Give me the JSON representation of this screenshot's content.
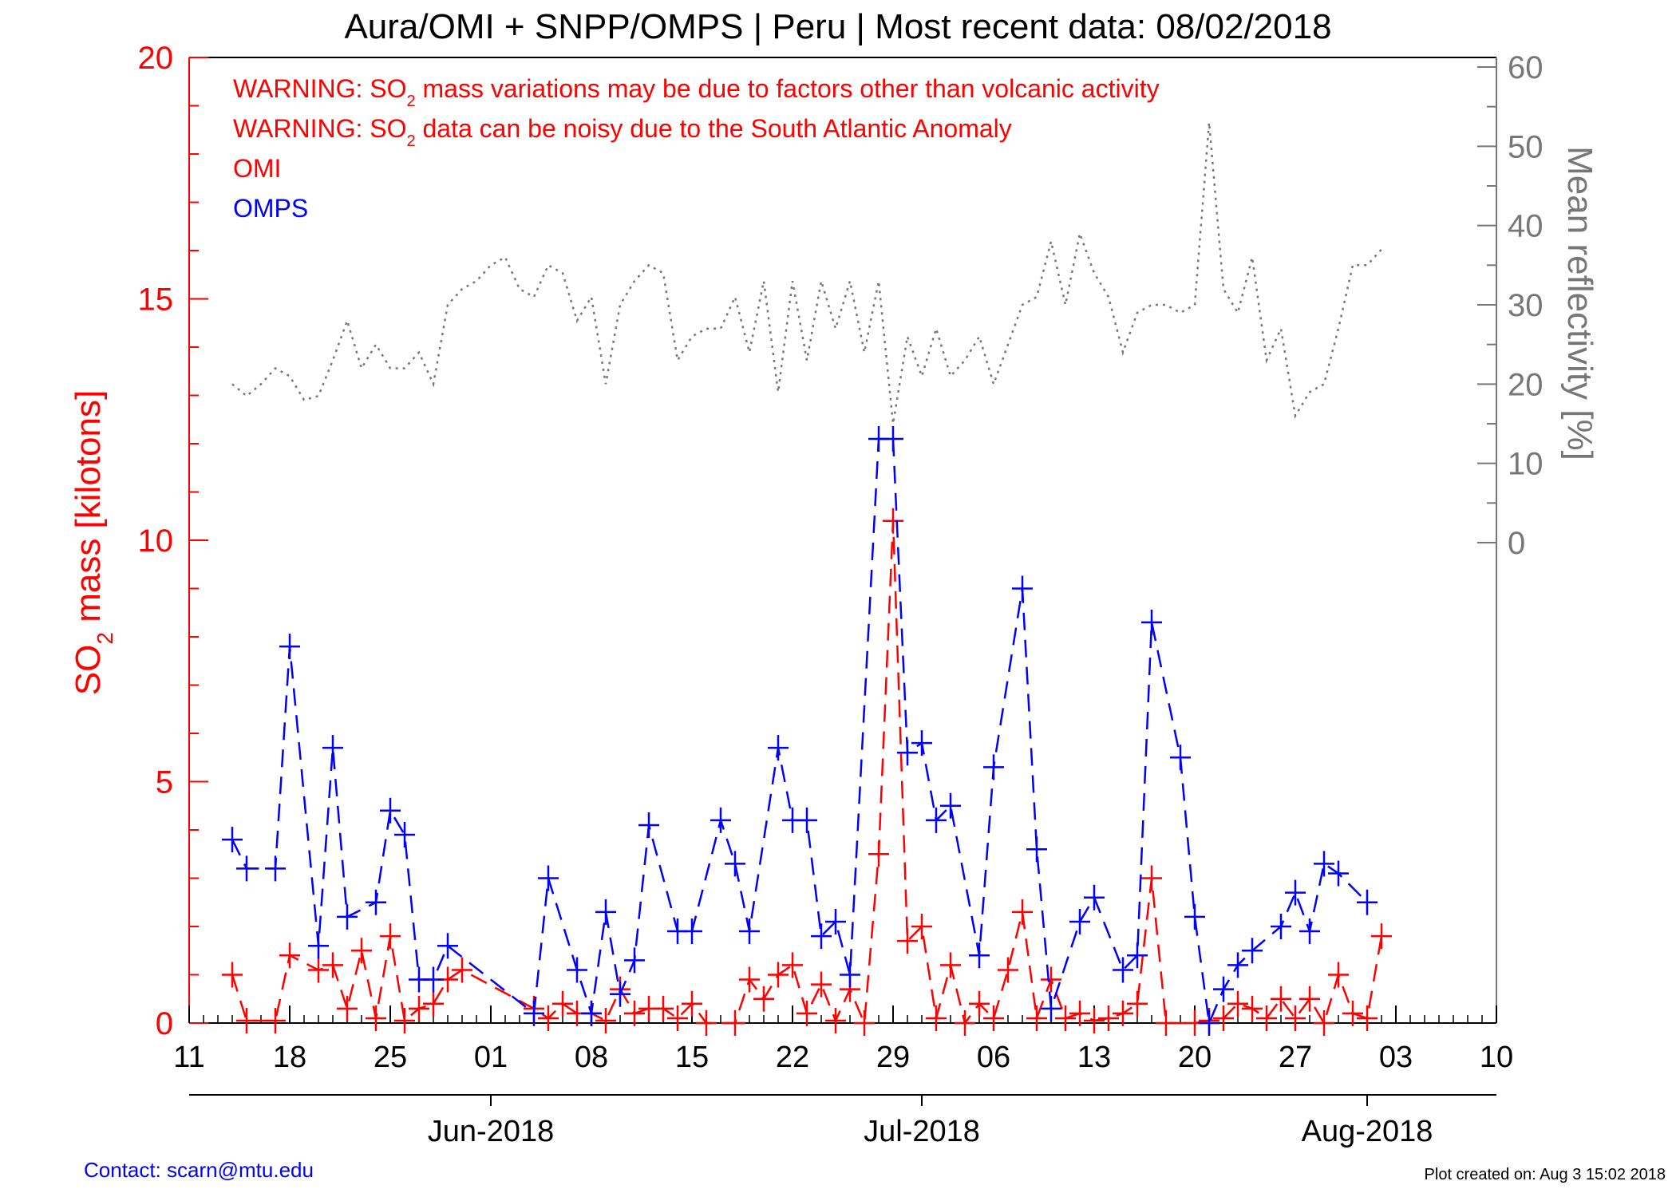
{
  "title": "Aura/OMI + SNPP/OMPS | Peru | Most recent data: 08/02/2018",
  "warnings": [
    {
      "pre": "WARNING: SO",
      "sub": "2",
      "post": " mass variations may be due to factors other than volcanic activity"
    },
    {
      "pre": "WARNING: SO",
      "sub": "2",
      "post": " data can be noisy due to the South Atlantic Anomaly"
    }
  ],
  "footer": {
    "contact": "Contact: scarn@mtu.edu",
    "created": "Plot created on: Aug  3 15:02 2018"
  },
  "chart_data": {
    "type": "line",
    "x_axis": {
      "range_dates": [
        "2018-05-11",
        "2018-08-10"
      ],
      "tick_labels": [
        "11",
        "18",
        "25",
        "01",
        "08",
        "15",
        "22",
        "29",
        "06",
        "13",
        "20",
        "27",
        "03",
        "10"
      ],
      "tick_dates": [
        "2018-05-11",
        "2018-05-18",
        "2018-05-25",
        "2018-06-01",
        "2018-06-08",
        "2018-06-15",
        "2018-06-22",
        "2018-06-29",
        "2018-07-06",
        "2018-07-13",
        "2018-07-20",
        "2018-07-27",
        "2018-08-03",
        "2018-08-10"
      ],
      "month_labels": [
        {
          "label": "Jun-2018",
          "date": "2018-06-01"
        },
        {
          "label": "Jul-2018",
          "date": "2018-07-01"
        },
        {
          "label": "Aug-2018",
          "date": "2018-08-01"
        }
      ]
    },
    "y_left": {
      "label_pre": "SO",
      "label_sub": "2",
      "label_post": " mass [kilotons]",
      "range": [
        0,
        20
      ],
      "ticks": [
        0,
        5,
        10,
        15,
        20
      ],
      "color": "#ff0000"
    },
    "y_right": {
      "label": "Mean reflectivity [%]",
      "range": [
        0,
        60
      ],
      "ticks": [
        0,
        10,
        20,
        30,
        40,
        50,
        60
      ],
      "color": "#777777"
    },
    "legend": [
      "OMI",
      "OMPS"
    ],
    "series": [
      {
        "name": "OMI",
        "axis": "left",
        "color": "#ff0000",
        "style": "dashed",
        "marker": "plus",
        "x": [
          "2018-05-14",
          "2018-05-15",
          "2018-05-17",
          "2018-05-18",
          "2018-05-20",
          "2018-05-21",
          "2018-05-22",
          "2018-05-23",
          "2018-05-24",
          "2018-05-25",
          "2018-05-26",
          "2018-05-27",
          "2018-05-28",
          "2018-05-29",
          "2018-05-30",
          "2018-06-04",
          "2018-06-05",
          "2018-06-06",
          "2018-06-07",
          "2018-06-08",
          "2018-06-09",
          "2018-06-10",
          "2018-06-11",
          "2018-06-12",
          "2018-06-13",
          "2018-06-14",
          "2018-06-15",
          "2018-06-16",
          "2018-06-18",
          "2018-06-19",
          "2018-06-20",
          "2018-06-21",
          "2018-06-22",
          "2018-06-23",
          "2018-06-24",
          "2018-06-25",
          "2018-06-26",
          "2018-06-27",
          "2018-06-28",
          "2018-06-29",
          "2018-06-30",
          "2018-07-01",
          "2018-07-02",
          "2018-07-03",
          "2018-07-04",
          "2018-07-05",
          "2018-07-06",
          "2018-07-07",
          "2018-07-08",
          "2018-07-09",
          "2018-07-10",
          "2018-07-11",
          "2018-07-12",
          "2018-07-13",
          "2018-07-14",
          "2018-07-15",
          "2018-07-16",
          "2018-07-17",
          "2018-07-18",
          "2018-07-20",
          "2018-07-21",
          "2018-07-22",
          "2018-07-23",
          "2018-07-24",
          "2018-07-25",
          "2018-07-26",
          "2018-07-27",
          "2018-07-28",
          "2018-07-29",
          "2018-07-30",
          "2018-07-31",
          "2018-08-01",
          "2018-08-02"
        ],
        "values": [
          1.0,
          0.05,
          0.05,
          1.4,
          1.1,
          1.2,
          0.3,
          1.5,
          0.1,
          1.8,
          0.05,
          0.3,
          0.4,
          0.9,
          1.1,
          0.3,
          0.1,
          0.4,
          0.2,
          0.2,
          0.05,
          0.7,
          0.2,
          0.3,
          0.3,
          0.1,
          0.4,
          0.0,
          0.0,
          0.9,
          0.5,
          1.0,
          1.2,
          0.2,
          0.8,
          0.05,
          0.7,
          0.0,
          3.5,
          10.4,
          1.7,
          2.0,
          0.1,
          1.2,
          0.0,
          0.4,
          0.1,
          1.1,
          2.3,
          0.1,
          0.9,
          0.1,
          0.2,
          0.05,
          0.1,
          0.2,
          0.4,
          3.0,
          0.0,
          0.0,
          0.05,
          0.1,
          0.4,
          0.3,
          0.1,
          0.5,
          0.1,
          0.5,
          0.0,
          1.0,
          0.2,
          0.1,
          1.8
        ]
      },
      {
        "name": "OMPS",
        "axis": "left",
        "color": "#0000ff",
        "style": "dashed",
        "marker": "plus",
        "x": [
          "2018-05-14",
          "2018-05-15",
          "2018-05-17",
          "2018-05-18",
          "2018-05-20",
          "2018-05-21",
          "2018-05-22",
          "2018-05-24",
          "2018-05-25",
          "2018-05-26",
          "2018-05-27",
          "2018-05-28",
          "2018-05-29",
          "2018-06-04",
          "2018-06-05",
          "2018-06-07",
          "2018-06-08",
          "2018-06-09",
          "2018-06-10",
          "2018-06-11",
          "2018-06-12",
          "2018-06-14",
          "2018-06-15",
          "2018-06-17",
          "2018-06-18",
          "2018-06-19",
          "2018-06-21",
          "2018-06-22",
          "2018-06-23",
          "2018-06-24",
          "2018-06-25",
          "2018-06-26",
          "2018-06-28",
          "2018-06-29",
          "2018-06-30",
          "2018-07-01",
          "2018-07-02",
          "2018-07-03",
          "2018-07-05",
          "2018-07-06",
          "2018-07-08",
          "2018-07-09",
          "2018-07-10",
          "2018-07-12",
          "2018-07-13",
          "2018-07-15",
          "2018-07-16",
          "2018-07-17",
          "2018-07-19",
          "2018-07-20",
          "2018-07-21",
          "2018-07-22",
          "2018-07-23",
          "2018-07-24",
          "2018-07-26",
          "2018-07-27",
          "2018-07-28",
          "2018-07-29",
          "2018-07-30",
          "2018-08-01"
        ],
        "values": [
          3.8,
          3.2,
          3.2,
          7.8,
          1.6,
          5.7,
          2.2,
          2.5,
          4.4,
          3.9,
          0.9,
          0.9,
          1.6,
          0.2,
          3.0,
          1.1,
          0.2,
          2.3,
          0.6,
          1.3,
          4.1,
          1.9,
          1.9,
          4.2,
          3.3,
          1.9,
          5.7,
          4.2,
          4.2,
          1.8,
          2.1,
          1.0,
          12.1,
          12.1,
          5.6,
          5.8,
          4.2,
          4.5,
          1.4,
          5.3,
          9.0,
          3.6,
          0.3,
          2.1,
          2.6,
          1.1,
          1.4,
          8.3,
          5.5,
          2.2,
          0.0,
          0.7,
          1.2,
          1.5,
          2.0,
          2.7,
          1.9,
          3.3,
          3.1,
          2.5
        ]
      },
      {
        "name": "Mean reflectivity",
        "axis": "right",
        "color": "#777777",
        "style": "dotted",
        "marker": "none",
        "x": [
          "2018-05-14",
          "2018-05-15",
          "2018-05-16",
          "2018-05-17",
          "2018-05-18",
          "2018-05-19",
          "2018-05-20",
          "2018-05-21",
          "2018-05-22",
          "2018-05-23",
          "2018-05-24",
          "2018-05-25",
          "2018-05-26",
          "2018-05-27",
          "2018-05-28",
          "2018-05-29",
          "2018-05-30",
          "2018-05-31",
          "2018-06-01",
          "2018-06-02",
          "2018-06-03",
          "2018-06-04",
          "2018-06-05",
          "2018-06-06",
          "2018-06-07",
          "2018-06-08",
          "2018-06-09",
          "2018-06-10",
          "2018-06-11",
          "2018-06-12",
          "2018-06-13",
          "2018-06-14",
          "2018-06-15",
          "2018-06-16",
          "2018-06-17",
          "2018-06-18",
          "2018-06-19",
          "2018-06-20",
          "2018-06-21",
          "2018-06-22",
          "2018-06-23",
          "2018-06-24",
          "2018-06-25",
          "2018-06-26",
          "2018-06-27",
          "2018-06-28",
          "2018-06-29",
          "2018-06-30",
          "2018-07-01",
          "2018-07-02",
          "2018-07-03",
          "2018-07-04",
          "2018-07-05",
          "2018-07-06",
          "2018-07-07",
          "2018-07-08",
          "2018-07-09",
          "2018-07-10",
          "2018-07-11",
          "2018-07-12",
          "2018-07-13",
          "2018-07-14",
          "2018-07-15",
          "2018-07-16",
          "2018-07-17",
          "2018-07-18",
          "2018-07-19",
          "2018-07-20",
          "2018-07-21",
          "2018-07-22",
          "2018-07-23",
          "2018-07-24",
          "2018-07-25",
          "2018-07-26",
          "2018-07-27",
          "2018-07-28",
          "2018-07-29",
          "2018-07-30",
          "2018-07-31",
          "2018-08-01",
          "2018-08-02"
        ],
        "values": [
          20,
          18.5,
          20,
          22,
          21,
          18,
          18.5,
          23,
          28,
          22,
          25,
          22,
          22,
          24,
          20,
          30,
          32,
          33,
          35,
          36,
          32,
          31,
          35,
          34,
          28,
          31,
          20,
          30,
          33,
          35,
          34,
          23,
          26,
          27,
          27,
          31,
          24,
          33,
          19,
          33,
          23,
          33,
          27,
          33,
          24,
          33,
          15,
          26,
          21,
          27,
          21,
          23,
          26,
          20,
          25,
          30,
          31,
          38,
          30,
          39,
          34,
          31,
          24,
          29,
          30,
          30,
          29,
          30,
          53,
          32,
          29,
          36,
          23,
          27,
          16,
          19,
          20,
          27,
          35,
          35,
          37
        ]
      }
    ],
    "grid": false
  }
}
